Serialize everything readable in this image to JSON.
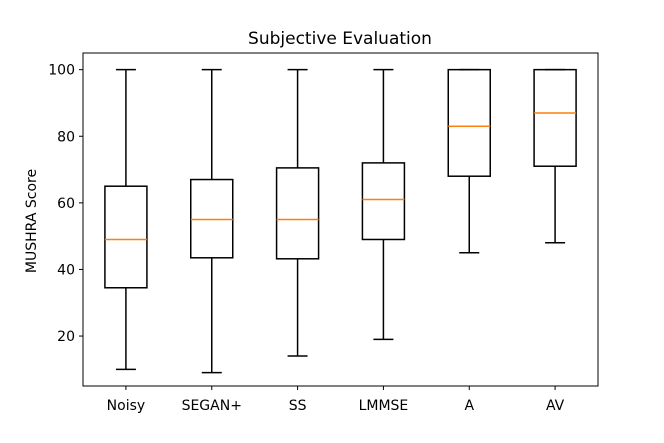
{
  "chart_data": {
    "type": "boxplot",
    "title": "Subjective Evaluation",
    "xlabel": "",
    "ylabel": "MUSHRA Score",
    "ylim": [
      5,
      105
    ],
    "yticks": [
      20,
      40,
      60,
      80,
      100
    ],
    "grid": false,
    "categories": [
      "Noisy",
      "SEGAN+",
      "SS",
      "LMMSE",
      "A",
      "AV"
    ],
    "boxes": [
      {
        "name": "Noisy",
        "whisker_low": 10,
        "q1": 34.5,
        "median": 49,
        "q3": 65,
        "whisker_high": 100
      },
      {
        "name": "SEGAN+",
        "whisker_low": 9,
        "q1": 43.5,
        "median": 55,
        "q3": 67,
        "whisker_high": 100
      },
      {
        "name": "SS",
        "whisker_low": 14,
        "q1": 43.2,
        "median": 55,
        "q3": 70.5,
        "whisker_high": 100
      },
      {
        "name": "LMMSE",
        "whisker_low": 19,
        "q1": 49,
        "median": 61,
        "q3": 72,
        "whisker_high": 100
      },
      {
        "name": "A",
        "whisker_low": 45,
        "q1": 68,
        "median": 83,
        "q3": 100,
        "whisker_high": 100
      },
      {
        "name": "AV",
        "whisker_low": 48,
        "q1": 71,
        "median": 87,
        "q3": 100,
        "whisker_high": 100
      }
    ],
    "colors": {
      "box": "#000000",
      "median": "#ff7f0e"
    }
  }
}
